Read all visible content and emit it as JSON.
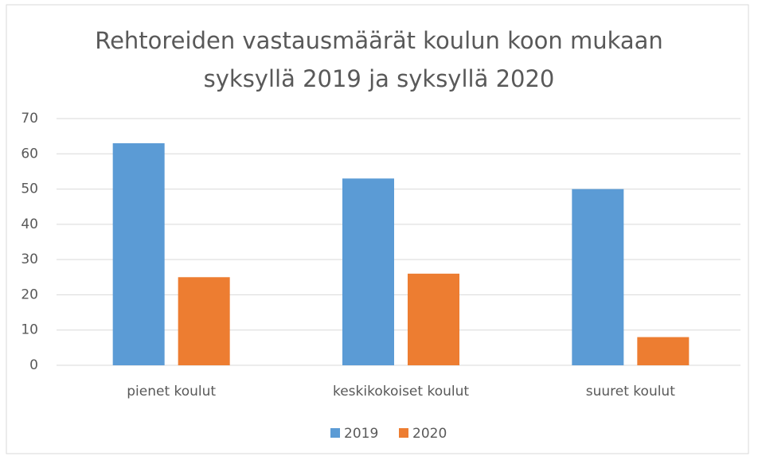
{
  "chart_data": {
    "type": "bar",
    "title": [
      "Rehtoreiden vastausmäärät koulun koon mukaan",
      "syksyllä 2019 ja syksyllä 2020"
    ],
    "categories": [
      "pienet koulut",
      "keskikokoiset koulut",
      "suuret koulut"
    ],
    "series": [
      {
        "name": "2019",
        "color": "#5b9bd5",
        "values": [
          63,
          53,
          50
        ]
      },
      {
        "name": "2020",
        "color": "#ed7d31",
        "values": [
          25,
          26,
          8
        ]
      }
    ],
    "ylim": [
      0,
      70
    ],
    "yticks": [
      0,
      10,
      20,
      30,
      40,
      50,
      60,
      70
    ],
    "grid": true,
    "legend": "bottom"
  }
}
